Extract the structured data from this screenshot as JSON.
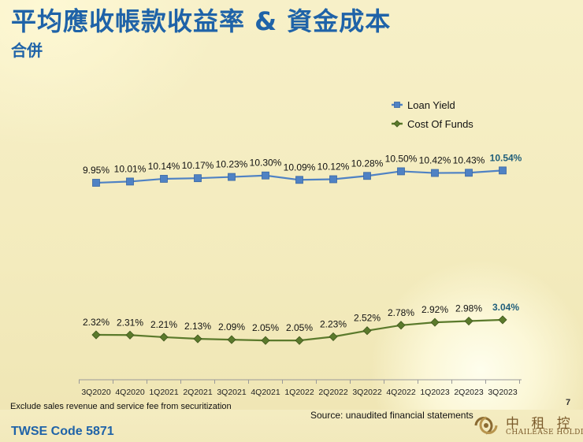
{
  "slide": {
    "title": "平均應收帳款收益率 & 資金成本",
    "subtitle": "合併",
    "footnote": "Exclude sales revenue and service fee from securitization",
    "page_number": "7",
    "source": "Source: unaudited financial statements",
    "twse_code": "TWSE Code 5871",
    "logo_chinese": "中 租 控 股",
    "logo_english": "CHAILEASE HOLDING",
    "colors": {
      "title": "#1f63a8",
      "loan_yield": "#4f82c4",
      "cost_of_funds": "#5b7a2c",
      "latest_label": "#1f5e7a",
      "background": "#f6efc2"
    }
  },
  "chart_data": {
    "type": "line",
    "categories": [
      "3Q2020",
      "4Q2020",
      "1Q2021",
      "2Q2021",
      "3Q2021",
      "4Q2021",
      "1Q2022",
      "2Q2022",
      "3Q2022",
      "4Q2022",
      "1Q2023",
      "2Q2023",
      "3Q2023"
    ],
    "series": [
      {
        "name": "Loan Yield",
        "color": "#4f82c4",
        "marker": "square",
        "values": [
          9.95,
          10.01,
          10.14,
          10.17,
          10.23,
          10.3,
          10.09,
          10.12,
          10.28,
          10.5,
          10.42,
          10.43,
          10.54
        ],
        "labels": [
          "9.95%",
          "10.01%",
          "10.14%",
          "10.17%",
          "10.23%",
          "10.30%",
          "10.09%",
          "10.12%",
          "10.28%",
          "10.50%",
          "10.42%",
          "10.43%",
          "10.54%"
        ]
      },
      {
        "name": "Cost Of Funds",
        "color": "#5b7a2c",
        "marker": "diamond",
        "values": [
          2.32,
          2.31,
          2.21,
          2.13,
          2.09,
          2.05,
          2.05,
          2.23,
          2.52,
          2.78,
          2.92,
          2.98,
          3.04
        ],
        "labels": [
          "2.32%",
          "2.31%",
          "2.21%",
          "2.13%",
          "2.09%",
          "2.05%",
          "2.05%",
          "2.23%",
          "2.52%",
          "2.78%",
          "2.92%",
          "2.98%",
          "3.04%"
        ]
      }
    ],
    "legend_position": "top-right",
    "grid": false,
    "y_axis_visible": false
  }
}
